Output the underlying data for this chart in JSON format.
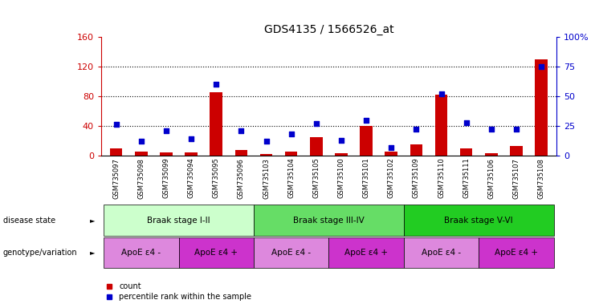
{
  "title": "GDS4135 / 1566526_at",
  "samples": [
    "GSM735097",
    "GSM735098",
    "GSM735099",
    "GSM735094",
    "GSM735095",
    "GSM735096",
    "GSM735103",
    "GSM735104",
    "GSM735105",
    "GSM735100",
    "GSM735101",
    "GSM735102",
    "GSM735109",
    "GSM735110",
    "GSM735111",
    "GSM735106",
    "GSM735107",
    "GSM735108"
  ],
  "counts": [
    10,
    5,
    4,
    4,
    85,
    8,
    2,
    5,
    25,
    3,
    40,
    5,
    15,
    82,
    10,
    3,
    13,
    130
  ],
  "percentiles": [
    26,
    12,
    21,
    14,
    60,
    21,
    12,
    18,
    27,
    13,
    30,
    7,
    22,
    52,
    28,
    22,
    22,
    75
  ],
  "ylim_left": [
    0,
    160
  ],
  "ylim_right": [
    0,
    100
  ],
  "yticks_left": [
    0,
    40,
    80,
    120,
    160
  ],
  "yticks_left_labels": [
    "0",
    "40",
    "80",
    "120",
    "160"
  ],
  "yticks_right": [
    0,
    25,
    50,
    75,
    100
  ],
  "yticks_right_labels": [
    "0",
    "25",
    "50",
    "75",
    "100%"
  ],
  "hlines": [
    40,
    80,
    120
  ],
  "bar_color": "#cc0000",
  "dot_color": "#0000cc",
  "disease_state_groups": [
    {
      "label": "Braak stage I-II",
      "start": 0,
      "end": 5,
      "color": "#ccffcc"
    },
    {
      "label": "Braak stage III-IV",
      "start": 6,
      "end": 11,
      "color": "#66dd66"
    },
    {
      "label": "Braak stage V-VI",
      "start": 12,
      "end": 17,
      "color": "#22cc22"
    }
  ],
  "genotype_groups": [
    {
      "label": "ApoE ε4 -",
      "start": 0,
      "end": 2,
      "color": "#dd88dd"
    },
    {
      "label": "ApoE ε4 +",
      "start": 3,
      "end": 5,
      "color": "#cc33cc"
    },
    {
      "label": "ApoE ε4 -",
      "start": 6,
      "end": 8,
      "color": "#dd88dd"
    },
    {
      "label": "ApoE ε4 +",
      "start": 9,
      "end": 11,
      "color": "#cc33cc"
    },
    {
      "label": "ApoE ε4 -",
      "start": 12,
      "end": 14,
      "color": "#dd88dd"
    },
    {
      "label": "ApoE ε4 +",
      "start": 15,
      "end": 17,
      "color": "#cc33cc"
    }
  ],
  "label_disease_state": "disease state",
  "label_genotype": "genotype/variation",
  "legend_count": "count",
  "legend_percentile": "percentile rank within the sample",
  "title_color": "#000000",
  "left_axis_color": "#cc0000",
  "right_axis_color": "#0000cc",
  "background_color": "#ffffff",
  "plot_bg_color": "#ffffff"
}
